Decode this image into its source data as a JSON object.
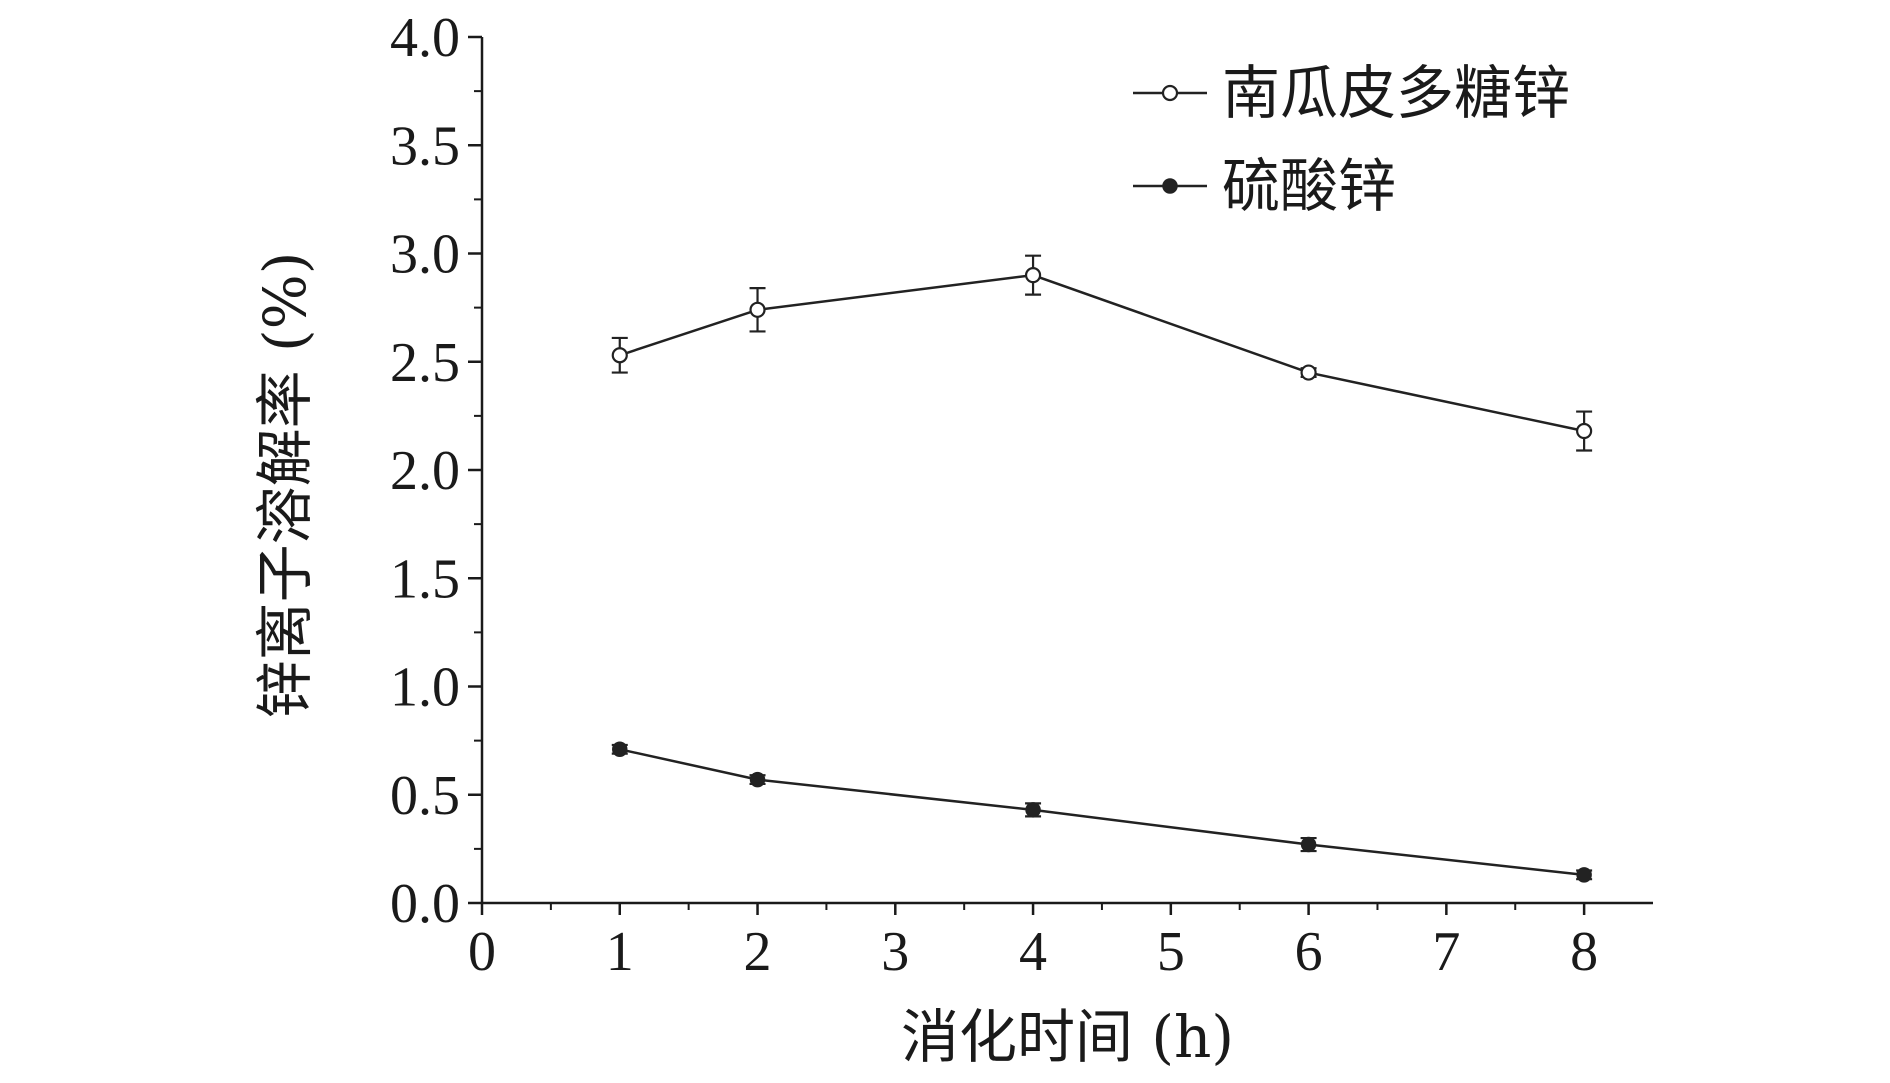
{
  "chart_data": {
    "type": "line",
    "xlabel": "消化时间 (h)",
    "ylabel": "锌离子溶解率 (%)",
    "xlim": [
      0,
      8.5
    ],
    "ylim": [
      0,
      4.0
    ],
    "xticks": [
      "0",
      "1",
      "2",
      "3",
      "4",
      "5",
      "6",
      "7",
      "8"
    ],
    "yticks": [
      "0.0",
      "0.5",
      "1.0",
      "1.5",
      "2.0",
      "2.5",
      "3.0",
      "3.5",
      "4.0"
    ],
    "grid": false,
    "legend_position": "top-right",
    "series": [
      {
        "name": "南瓜皮多糖锌",
        "marker": "open-circle",
        "color": "#222222",
        "x": [
          1,
          2,
          4,
          6,
          8
        ],
        "y": [
          2.53,
          2.74,
          2.9,
          2.45,
          2.18
        ],
        "error": [
          0.08,
          0.1,
          0.09,
          0.02,
          0.09
        ]
      },
      {
        "name": "硫酸锌",
        "marker": "filled-circle",
        "color": "#222222",
        "x": [
          1,
          2,
          4,
          6,
          8
        ],
        "y": [
          0.71,
          0.57,
          0.43,
          0.27,
          0.13
        ],
        "error": [
          0.02,
          0.02,
          0.03,
          0.03,
          0.02
        ]
      }
    ]
  }
}
